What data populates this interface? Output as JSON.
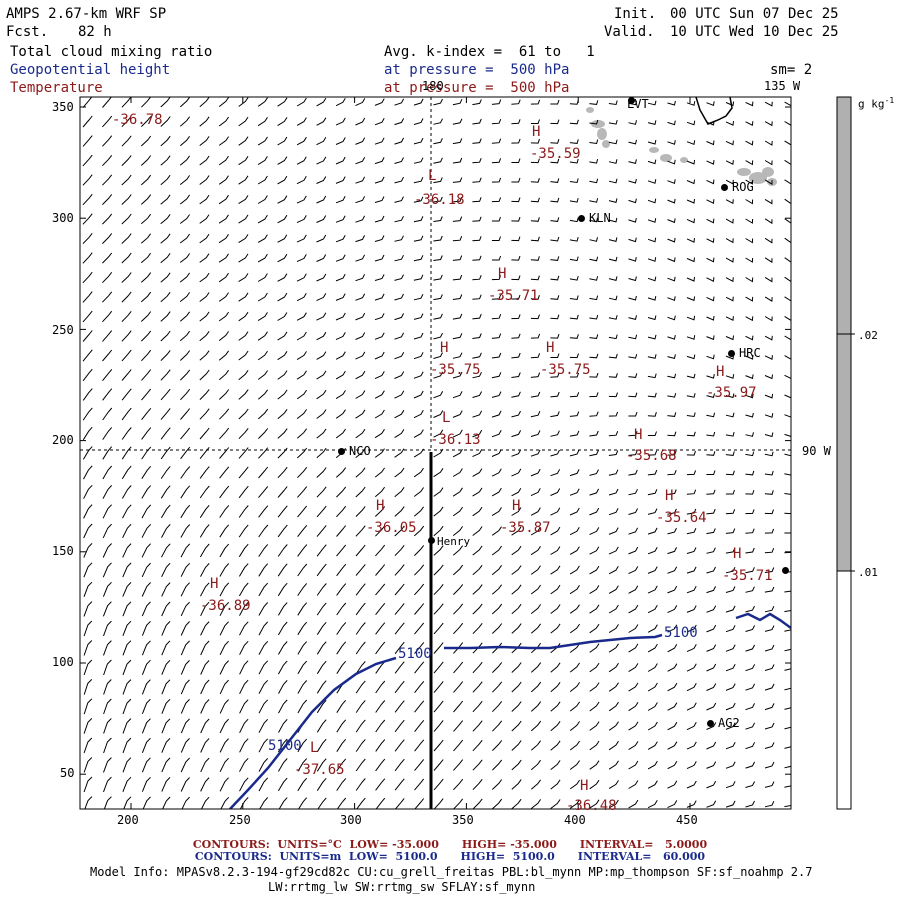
{
  "header": {
    "model_title": "AMPS 2.67-km WRF SP",
    "fcst_label": "Fcst.",
    "fcst_value": "82 h",
    "init_label": "Init.",
    "init_time": "00 UTC Sun 07 Dec 25",
    "valid_label": "Valid.",
    "valid_time": "10 UTC Wed 10 Dec 25",
    "field1": "Total cloud mixing ratio",
    "field2": "Geopotential height",
    "field3": "Temperature",
    "avg_text": "Avg. k-index =  61 to   1",
    "pressure2": "at pressure =  500 hPa",
    "pressure3": "at pressure =  500 hPa",
    "smooth": "sm= 2"
  },
  "map": {
    "x_ticks": [
      "200",
      "250",
      "300",
      "350",
      "400",
      "450"
    ],
    "y_ticks": [
      "350",
      "300",
      "250",
      "200",
      "150",
      "100",
      "50"
    ],
    "meridian_labels": {
      "m180": "180",
      "m135w": "135 W",
      "m90w": "90 W"
    },
    "stations": [
      {
        "name": "LVT"
      },
      {
        "name": "ROG"
      },
      {
        "name": "KLN"
      },
      {
        "name": "HRC"
      },
      {
        "name": "NCO"
      },
      {
        "name": "Henry"
      },
      {
        "name": "AG2"
      }
    ],
    "temp_extrema": [
      {
        "type": "",
        "value": "-36.78"
      },
      {
        "type": "H",
        "value": "-35.59"
      },
      {
        "type": "L",
        "value": "-36.18"
      },
      {
        "type": "H",
        "value": "-35.71"
      },
      {
        "type": "H",
        "value": "-35.75"
      },
      {
        "type": "H",
        "value": "-35.75"
      },
      {
        "type": "H",
        "value": "-35.97"
      },
      {
        "type": "L",
        "value": "-36.13"
      },
      {
        "type": "H",
        "value": "-35.68"
      },
      {
        "type": "H",
        "value": "-36.05"
      },
      {
        "type": "H",
        "value": "-35.87"
      },
      {
        "type": "H",
        "value": "-35.64"
      },
      {
        "type": "H",
        "value": "-35.71"
      },
      {
        "type": "H",
        "value": "-36.89"
      },
      {
        "type": "L",
        "value": "-37.65"
      },
      {
        "type": "H",
        "value": "-36.48"
      }
    ],
    "height_contour_label": "5100",
    "colors": {
      "temperature": "#8b1a1a",
      "height": "#1a2a8c",
      "cloud": "#b8b8b8"
    }
  },
  "colorbar": {
    "units": "g kg",
    "units_exp": "-1",
    "labels": [
      ".02",
      ".01"
    ]
  },
  "footer": {
    "line1": "CONTOURS:  UNITS=°C  LOW= -35.000      HIGH= -35.000      INTERVAL=   5.0000",
    "line2": "CONTOURS:  UNITS=m  LOW=  5100.0      HIGH=  5100.0      INTERVAL=   60.000",
    "model_info": "Model Info: MPASv8.2.3-194-gf29cd82c CU:cu_grell_freitas PBL:bl_mynn MP:mp_thompson SF:sf_noahmp 2.7",
    "physics": "LW:rrtmg_lw SW:rrtmg_sw SFLAY:sf_mynn"
  }
}
